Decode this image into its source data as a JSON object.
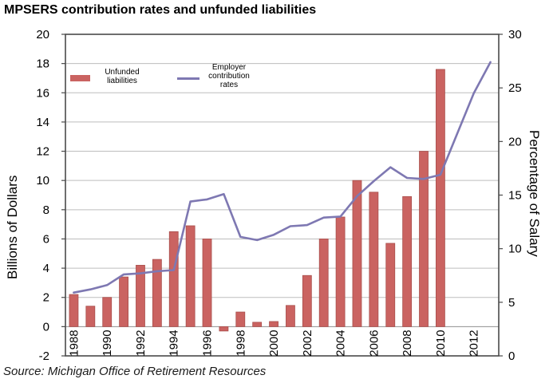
{
  "page": {
    "title": "MPSERS contribution rates and unfunded liabilities",
    "source": "Source: Michigan Office of Retirement Resources"
  },
  "colors": {
    "bar_fill": "#ca6361",
    "bar_border": "#a94f4c",
    "line": "#7e78b2",
    "grid": "#bdbdbd",
    "zero_line": "#8f8f8f",
    "plot_border": "#4a4a4a",
    "text": "#000000"
  },
  "chart_data": {
    "type": "bar",
    "subtype": "combo-bar-line-dual-axis",
    "title": "MPSERS contribution rates and unfunded liabilities",
    "source": "Source: Michigan Office of Retirement Resources",
    "categories": [
      1988,
      1989,
      1990,
      1991,
      1992,
      1993,
      1994,
      1995,
      1996,
      1997,
      1998,
      1999,
      2000,
      2001,
      2002,
      2003,
      2004,
      2005,
      2006,
      2007,
      2008,
      2009,
      2010,
      2011,
      2012,
      2013
    ],
    "x_tick_labels": [
      "1988",
      "1990",
      "1992",
      "1994",
      "1996",
      "1998",
      "2000",
      "2002",
      "2004",
      "2006",
      "2008",
      "2010",
      "2012"
    ],
    "series": [
      {
        "name": "Unfunded liabilities",
        "type": "bar",
        "axis": "left",
        "color": "#ca6361",
        "values": [
          2.2,
          1.4,
          2.0,
          3.4,
          4.2,
          4.6,
          6.5,
          6.9,
          6.0,
          -0.3,
          1.0,
          0.3,
          0.35,
          1.45,
          3.5,
          6.0,
          7.5,
          10.0,
          9.2,
          5.7,
          8.9,
          12.0,
          17.6,
          null,
          null,
          null
        ]
      },
      {
        "name": "Employer contribution rates",
        "type": "line",
        "axis": "right",
        "color": "#7e78b2",
        "values": [
          5.9,
          6.2,
          6.6,
          7.6,
          7.7,
          7.9,
          8.0,
          14.4,
          14.6,
          15.1,
          11.1,
          10.8,
          11.3,
          12.1,
          12.2,
          12.9,
          13.0,
          14.9,
          16.3,
          17.6,
          16.6,
          16.5,
          16.9,
          20.7,
          24.5,
          27.4
        ]
      }
    ],
    "left_axis": {
      "label": "Billions of Dollars",
      "min": -2,
      "max": 20,
      "tick_step": 2,
      "ticks": [
        -2,
        0,
        2,
        4,
        6,
        8,
        10,
        12,
        14,
        16,
        18,
        20
      ]
    },
    "right_axis": {
      "label": "Percentage of Salary",
      "min": 0,
      "max": 30,
      "tick_step": 5,
      "ticks": [
        0,
        5,
        10,
        15,
        20,
        25,
        30
      ]
    },
    "grid": true,
    "legend": {
      "position": "inside-top-left",
      "items": [
        {
          "swatch": "bar",
          "lines": [
            "Unfunded",
            "liabilities"
          ]
        },
        {
          "swatch": "line",
          "lines": [
            "Employer",
            "contribution",
            "rates"
          ]
        }
      ]
    }
  }
}
